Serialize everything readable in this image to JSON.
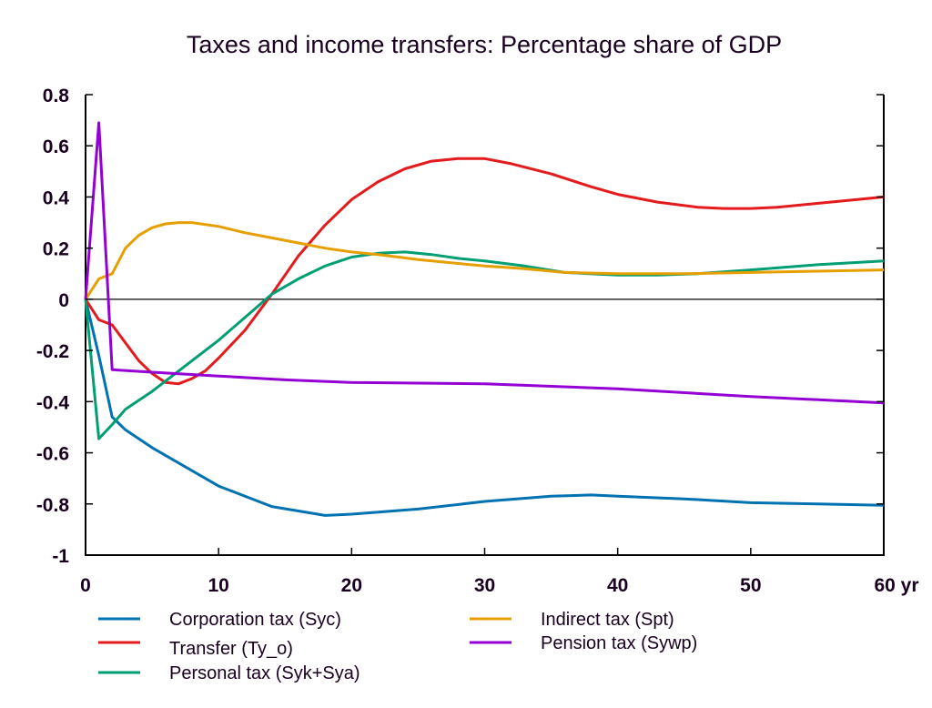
{
  "chart_data": {
    "type": "line",
    "title": "Taxes and income transfers: Percentage share of GDP",
    "xlabel": "",
    "ylabel": "",
    "x_unit_suffix": "yr",
    "xlim": [
      0,
      60
    ],
    "ylim": [
      -1,
      0.8
    ],
    "x_ticks": [
      0,
      10,
      20,
      30,
      40,
      50,
      60
    ],
    "x_tick_labels": [
      "0",
      "10",
      "20",
      "30",
      "40",
      "50",
      "60 yr"
    ],
    "y_ticks": [
      0.8,
      0.6,
      0.4,
      0.2,
      0,
      -0.2,
      -0.4,
      -0.6,
      -0.8,
      -1
    ],
    "y_tick_labels": [
      "0.8",
      "0.6",
      "0.4",
      "0.2",
      "0",
      "-0.2",
      "-0.4",
      "-0.6",
      "-0.8",
      "-1"
    ],
    "grid": false,
    "zero_line": true,
    "legend_position": "bottom",
    "series": [
      {
        "name": "Corporation tax (Syc)",
        "color": "#0072b2",
        "x": [
          0,
          1,
          2,
          3,
          5,
          8,
          10,
          14,
          18,
          20,
          25,
          30,
          35,
          38,
          40,
          45,
          50,
          55,
          60
        ],
        "y": [
          0,
          -0.22,
          -0.46,
          -0.51,
          -0.58,
          -0.67,
          -0.73,
          -0.81,
          -0.845,
          -0.84,
          -0.82,
          -0.79,
          -0.77,
          -0.765,
          -0.77,
          -0.78,
          -0.795,
          -0.8,
          -0.805
        ]
      },
      {
        "name": "Transfer (Ty_o)",
        "color": "#e41a1c",
        "x": [
          0,
          1,
          2,
          3,
          4,
          5,
          6,
          7,
          8,
          9,
          10,
          12,
          14,
          16,
          18,
          20,
          22,
          24,
          26,
          28,
          30,
          32,
          35,
          38,
          40,
          43,
          46,
          48,
          50,
          52,
          55,
          58,
          60
        ],
        "y": [
          0,
          -0.08,
          -0.1,
          -0.17,
          -0.24,
          -0.29,
          -0.325,
          -0.33,
          -0.31,
          -0.28,
          -0.23,
          -0.12,
          0.02,
          0.17,
          0.29,
          0.39,
          0.46,
          0.51,
          0.54,
          0.55,
          0.55,
          0.53,
          0.49,
          0.44,
          0.41,
          0.38,
          0.36,
          0.355,
          0.355,
          0.36,
          0.375,
          0.39,
          0.4
        ]
      },
      {
        "name": "Personal tax (Syk+Sya)",
        "color": "#009e73",
        "x": [
          0,
          1,
          2,
          3,
          5,
          8,
          10,
          12,
          14,
          16,
          18,
          20,
          22,
          24,
          26,
          28,
          30,
          33,
          36,
          40,
          43,
          46,
          50,
          55,
          60
        ],
        "y": [
          0,
          -0.545,
          -0.49,
          -0.43,
          -0.36,
          -0.24,
          -0.16,
          -0.07,
          0.02,
          0.08,
          0.13,
          0.165,
          0.18,
          0.185,
          0.175,
          0.16,
          0.15,
          0.13,
          0.105,
          0.095,
          0.095,
          0.1,
          0.115,
          0.135,
          0.15
        ]
      },
      {
        "name": "Indirect tax (Spt)",
        "color": "#e69f00",
        "x": [
          0,
          1,
          2,
          3,
          4,
          5,
          6,
          7,
          8,
          10,
          12,
          14,
          16,
          18,
          20,
          22,
          25,
          28,
          30,
          33,
          36,
          40,
          45,
          50,
          55,
          60
        ],
        "y": [
          0,
          0.08,
          0.1,
          0.2,
          0.25,
          0.28,
          0.295,
          0.3,
          0.3,
          0.285,
          0.26,
          0.24,
          0.22,
          0.2,
          0.185,
          0.175,
          0.155,
          0.14,
          0.13,
          0.12,
          0.105,
          0.1,
          0.1,
          0.105,
          0.11,
          0.115
        ]
      },
      {
        "name": "Pension tax (Sywp)",
        "color": "#9400d3",
        "x": [
          0,
          1,
          2,
          5,
          10,
          15,
          20,
          30,
          40,
          50,
          60
        ],
        "y": [
          0,
          0.69,
          -0.275,
          -0.285,
          -0.3,
          -0.315,
          -0.325,
          -0.33,
          -0.35,
          -0.38,
          -0.405
        ]
      }
    ]
  }
}
